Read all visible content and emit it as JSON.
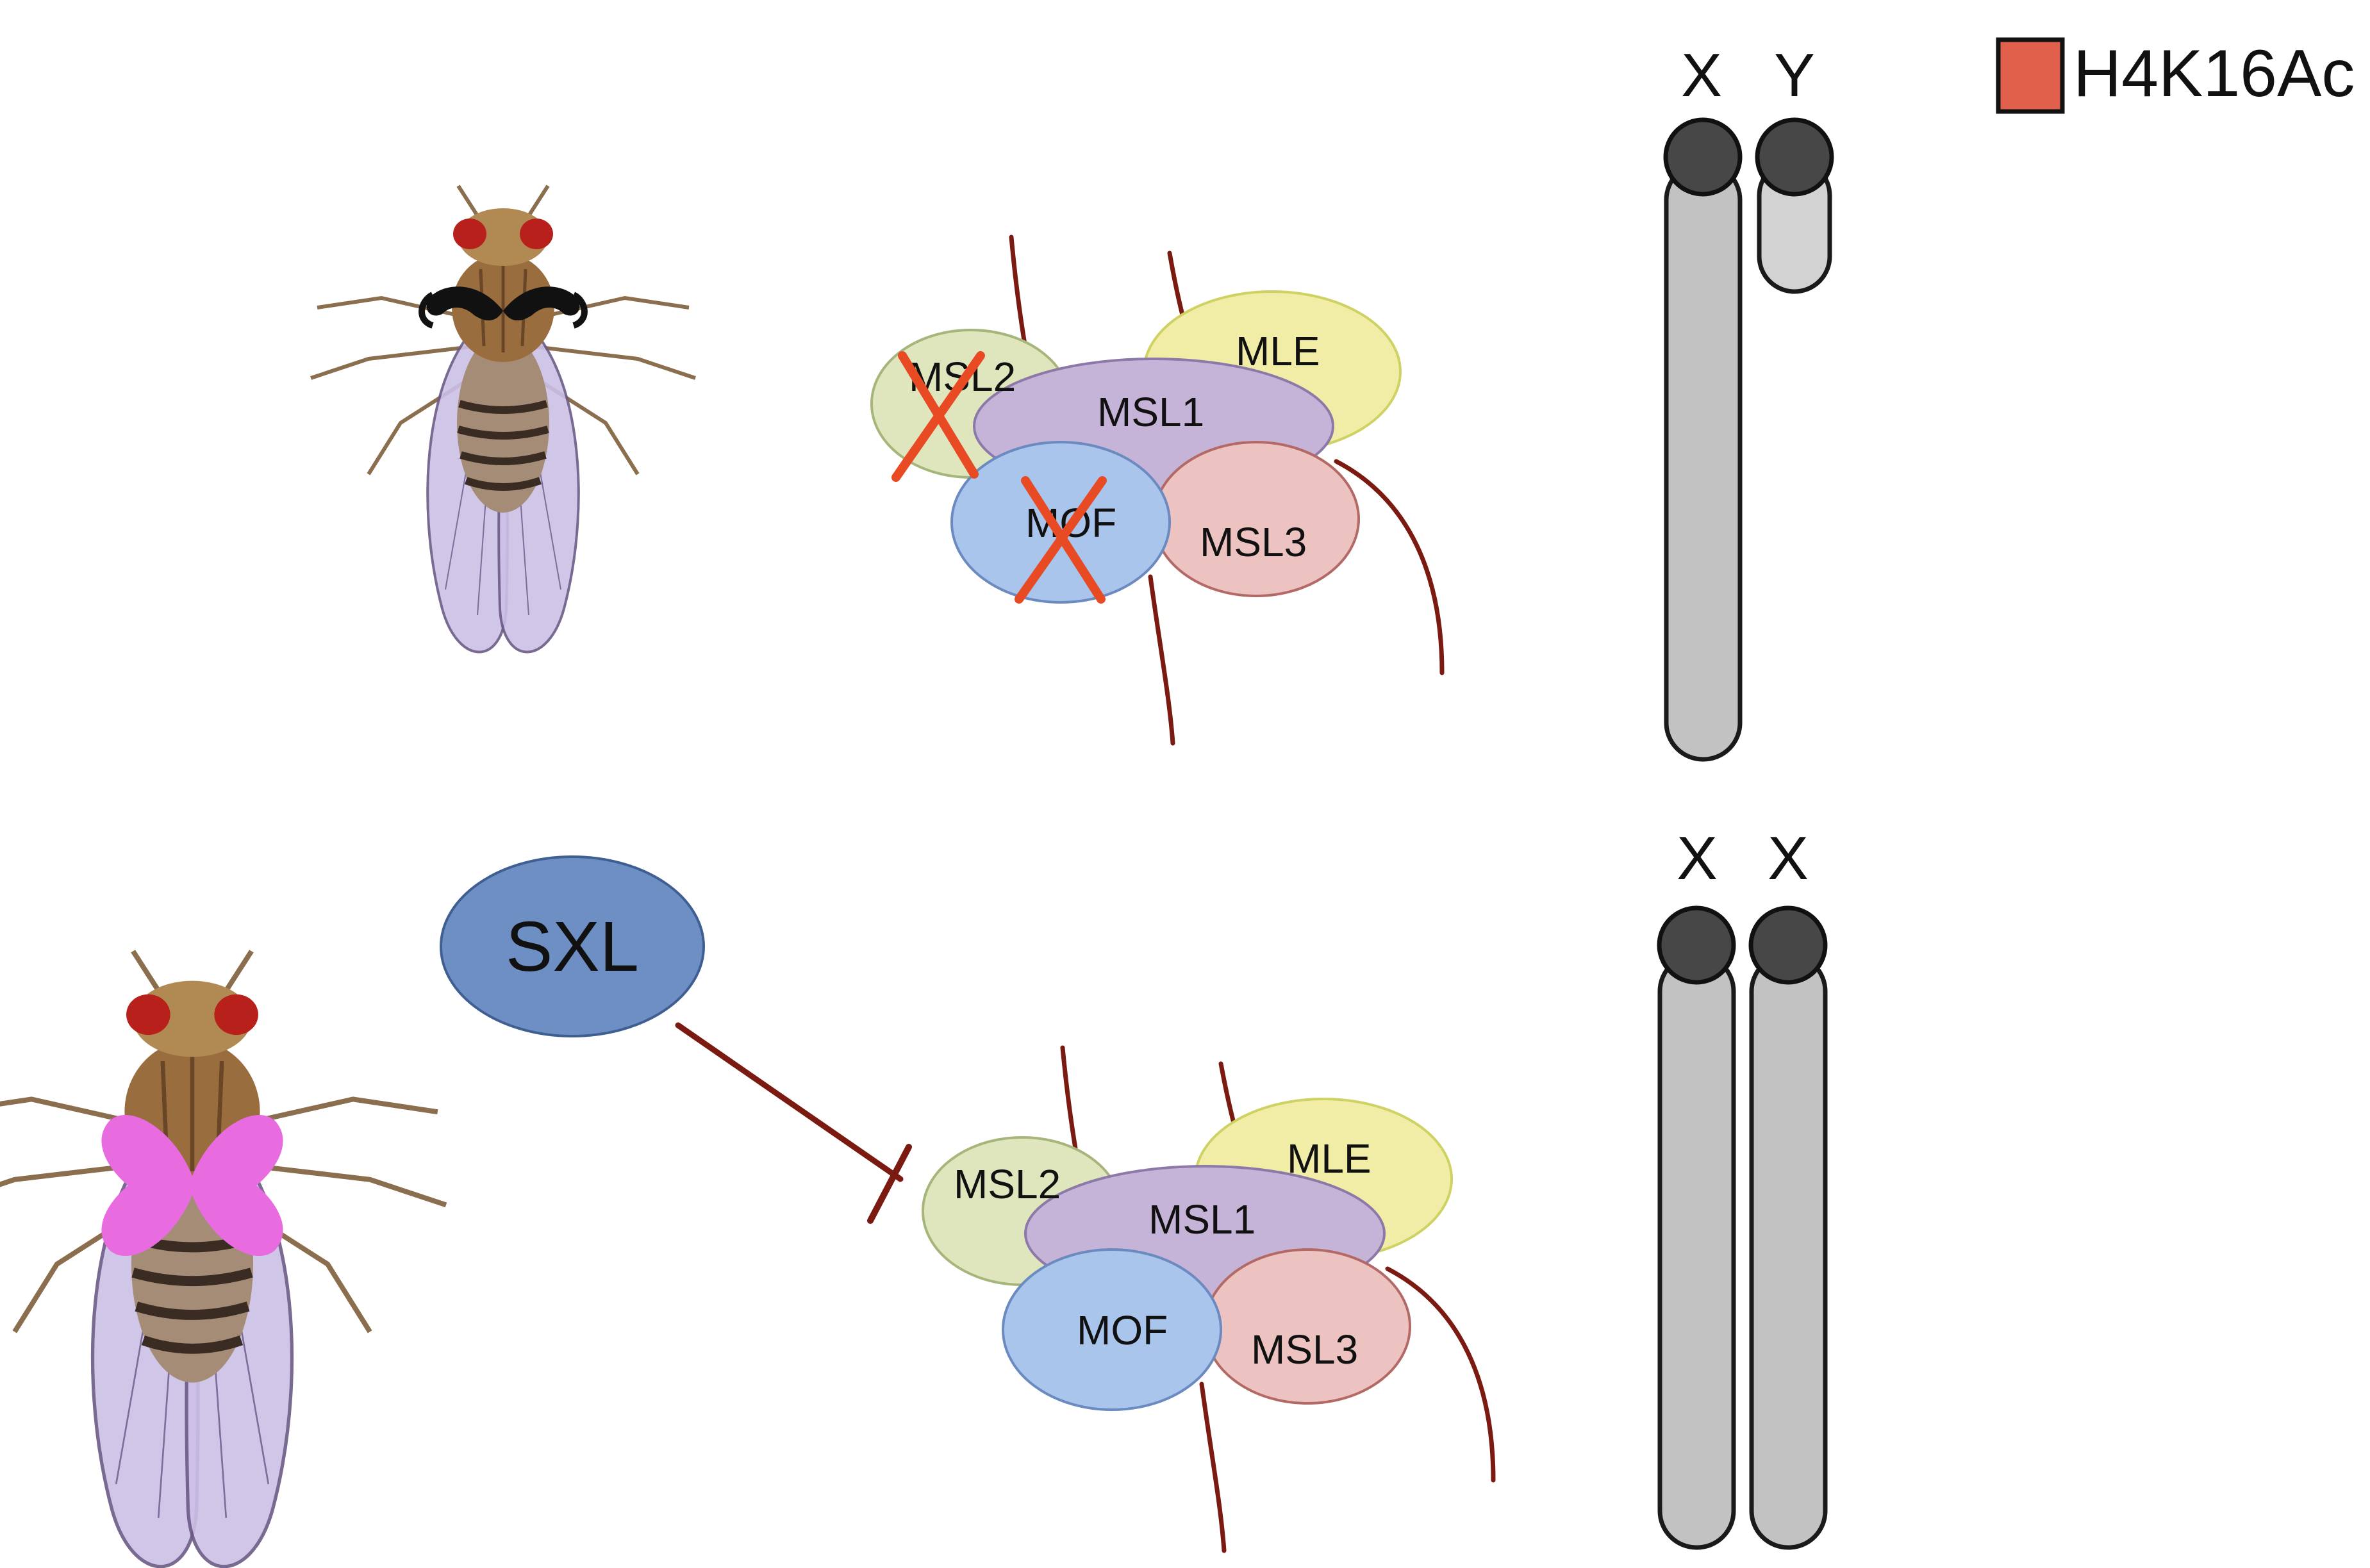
{
  "legend": {
    "label": "H4K16Ac",
    "color": "#e0604c"
  },
  "male": {
    "chromosomes": [
      "X",
      "Y"
    ],
    "complex": {
      "msl2": "MSL2",
      "mle": "MLE",
      "msl1": "MSL1",
      "mof": "MOF",
      "msl3": "MSL3"
    },
    "crossed_out": [
      "MSL2",
      "MOF"
    ],
    "accessory": "mustache"
  },
  "female": {
    "chromosomes": [
      "X",
      "X"
    ],
    "complex": {
      "msl2": "MSL2",
      "mle": "MLE",
      "msl1": "MSL1",
      "mof": "MOF",
      "msl3": "MSL3"
    },
    "accessory": "heart bow"
  },
  "repressor": {
    "label": "SXL",
    "color": "#6e8fc4"
  },
  "colors": {
    "msl2": "#dfe6bd",
    "mle": "#f1eda6",
    "msl1": "#c6b3d8",
    "mof": "#a9c5ec",
    "msl3": "#ecc3c0",
    "rna": "#7a1a10",
    "cross": "#e84a23",
    "chromosome": "#c2c2c2",
    "centromere": "#474747",
    "mustache": "#111111",
    "bow": "#e86be0"
  }
}
